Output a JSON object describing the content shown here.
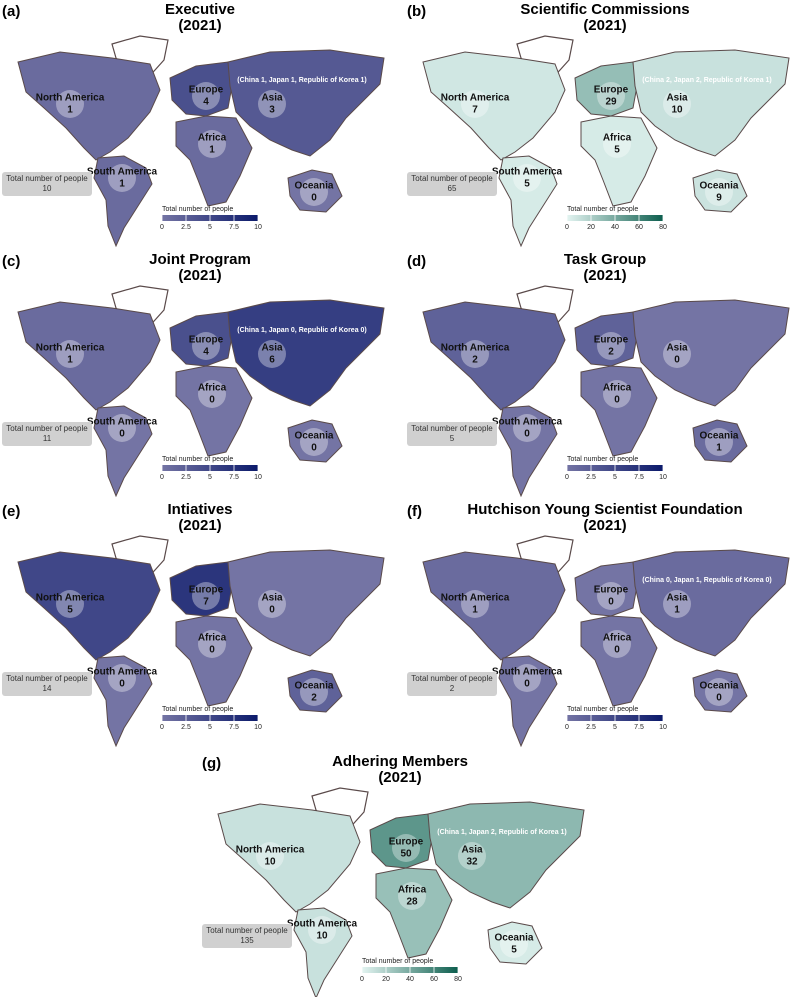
{
  "panels": [
    {
      "letter": "(a)",
      "title": "Executive",
      "subtitle": "(2021)",
      "regions": [
        {
          "name": "North America",
          "value": 1
        },
        {
          "name": "South America",
          "value": 1
        },
        {
          "name": "Europe",
          "value": 4
        },
        {
          "name": "Africa",
          "value": 1
        },
        {
          "name": "Asia",
          "value": 3
        },
        {
          "name": "Oceania",
          "value": 0
        }
      ],
      "note": "(China 1, Japan 1, Republic of Korea 1)",
      "total_label": "Total number of people",
      "total": 10,
      "legend_title": "Total number of people",
      "legend_ticks": [
        0,
        2.5,
        5,
        7.5,
        10
      ],
      "scale_colors": [
        "#7474a4",
        "#0b1a6b"
      ]
    },
    {
      "letter": "(b)",
      "title": "Scientific Commissions",
      "subtitle": "(2021)",
      "regions": [
        {
          "name": "North America",
          "value": 7
        },
        {
          "name": "South America",
          "value": 5
        },
        {
          "name": "Europe",
          "value": 29
        },
        {
          "name": "Africa",
          "value": 5
        },
        {
          "name": "Asia",
          "value": 10
        },
        {
          "name": "Oceania",
          "value": 9
        }
      ],
      "note": "(China 2, Japan 2, Republic of Korea 1)",
      "total_label": "Total number of people",
      "total": 65,
      "legend_title": "Total number of people",
      "legend_ticks": [
        0,
        20,
        40,
        60,
        80
      ],
      "scale_colors": [
        "#e3f4f1",
        "#0d5e4e"
      ]
    },
    {
      "letter": "(c)",
      "title": "Joint Program",
      "subtitle": "(2021)",
      "regions": [
        {
          "name": "North America",
          "value": 1
        },
        {
          "name": "South America",
          "value": 0
        },
        {
          "name": "Europe",
          "value": 4
        },
        {
          "name": "Africa",
          "value": 0
        },
        {
          "name": "Asia",
          "value": 6
        },
        {
          "name": "Oceania",
          "value": 0
        }
      ],
      "note": "(China 1, Japan 0, Republic of Korea 0)",
      "total_label": "Total number of people",
      "total": 11,
      "legend_title": "Total number of people",
      "legend_ticks": [
        0,
        2.5,
        5,
        7.5,
        10
      ],
      "scale_colors": [
        "#7474a4",
        "#0b1a6b"
      ]
    },
    {
      "letter": "(d)",
      "title": "Task Group",
      "subtitle": "(2021)",
      "regions": [
        {
          "name": "North America",
          "value": 2
        },
        {
          "name": "South America",
          "value": 0
        },
        {
          "name": "Europe",
          "value": 2
        },
        {
          "name": "Africa",
          "value": 0
        },
        {
          "name": "Asia",
          "value": 0
        },
        {
          "name": "Oceania",
          "value": 1
        }
      ],
      "total_label": "Total number of people",
      "total": 5,
      "legend_title": "Total number of people",
      "legend_ticks": [
        0,
        2.5,
        5,
        7.5,
        10
      ],
      "scale_colors": [
        "#7474a4",
        "#0b1a6b"
      ]
    },
    {
      "letter": "(e)",
      "title": "Intiatives",
      "subtitle": "(2021)",
      "regions": [
        {
          "name": "North America",
          "value": 5
        },
        {
          "name": "South America",
          "value": 0
        },
        {
          "name": "Europe",
          "value": 7
        },
        {
          "name": "Africa",
          "value": 0
        },
        {
          "name": "Asia",
          "value": 0
        },
        {
          "name": "Oceania",
          "value": 2
        }
      ],
      "total_label": "Total number of people",
      "total": 14,
      "legend_title": "Total number of people",
      "legend_ticks": [
        0,
        2.5,
        5,
        7.5,
        10
      ],
      "scale_colors": [
        "#7474a4",
        "#0b1a6b"
      ]
    },
    {
      "letter": "(f)",
      "title": "Hutchison Young Scientist Foundation",
      "subtitle": "(2021)",
      "regions": [
        {
          "name": "North America",
          "value": 1
        },
        {
          "name": "South America",
          "value": 0
        },
        {
          "name": "Europe",
          "value": 0
        },
        {
          "name": "Africa",
          "value": 0
        },
        {
          "name": "Asia",
          "value": 1
        },
        {
          "name": "Oceania",
          "value": 0
        }
      ],
      "note": "(China 0, Japan 1, Republic of Korea 0)",
      "total_label": "Total number of people",
      "total": 2,
      "legend_title": "Total number of people",
      "legend_ticks": [
        0,
        2.5,
        5,
        7.5,
        10
      ],
      "scale_colors": [
        "#7474a4",
        "#0b1a6b"
      ]
    },
    {
      "letter": "(g)",
      "title": "Adhering Members",
      "subtitle": "(2021)",
      "regions": [
        {
          "name": "North America",
          "value": 10
        },
        {
          "name": "South America",
          "value": 10
        },
        {
          "name": "Europe",
          "value": 50
        },
        {
          "name": "Africa",
          "value": 28
        },
        {
          "name": "Asia",
          "value": 32
        },
        {
          "name": "Oceania",
          "value": 5
        }
      ],
      "note": "(China 1, Japan 2, Republic of Korea 1)",
      "total_label": "Total number of people",
      "total": 135,
      "legend_title": "Total number of people",
      "legend_ticks": [
        0,
        20,
        40,
        60,
        80
      ],
      "scale_colors": [
        "#e3f4f1",
        "#0d5e4e"
      ]
    }
  ]
}
